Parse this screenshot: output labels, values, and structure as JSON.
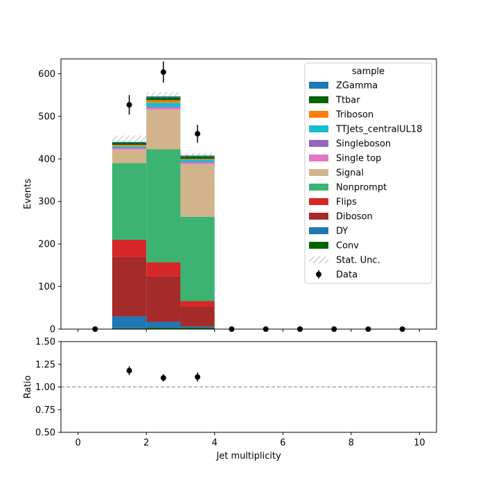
{
  "chart_data": [
    {
      "type": "bar",
      "stacked": true,
      "ylabel": "Events",
      "xlim": [
        -0.5,
        10.5
      ],
      "ylim": [
        0,
        635
      ],
      "yticks": [
        0,
        100,
        200,
        300,
        400,
        500,
        600
      ],
      "xticks": [
        0,
        2,
        4,
        6,
        8,
        10
      ],
      "grid": false,
      "legend_title": "sample",
      "legend_placement": "top-right",
      "bins": [
        [
          1,
          2
        ],
        [
          2,
          3
        ],
        [
          3,
          4
        ]
      ],
      "series": [
        {
          "name": "Conv",
          "color": "#006400",
          "values": [
            2,
            3,
            3
          ]
        },
        {
          "name": "DY",
          "color": "#1f77b4",
          "values": [
            28,
            14,
            3
          ]
        },
        {
          "name": "Diboson",
          "color": "#a52a2a",
          "values": [
            140,
            107,
            47
          ]
        },
        {
          "name": "Flips",
          "color": "#d62728",
          "values": [
            40,
            33,
            13
          ]
        },
        {
          "name": "Nonprompt",
          "color": "#3cb371",
          "values": [
            180,
            266,
            198
          ]
        },
        {
          "name": "Signal",
          "color": "#d2b48c",
          "values": [
            32,
            93,
            124
          ]
        },
        {
          "name": "Single top",
          "color": "#e377c2",
          "values": [
            3,
            4,
            3
          ]
        },
        {
          "name": "Singleboson",
          "color": "#9467bd",
          "values": [
            2,
            2,
            2
          ]
        },
        {
          "name": "TTJets_centralUL18",
          "color": "#17becf",
          "values": [
            3,
            10,
            5
          ]
        },
        {
          "name": "Triboson",
          "color": "#ff7f0e",
          "values": [
            3,
            6,
            2
          ]
        },
        {
          "name": "Ttbar",
          "color": "#006400",
          "values": [
            5,
            7,
            6
          ]
        },
        {
          "name": "ZGamma",
          "color": "#1f77b4",
          "values": [
            2,
            2,
            2
          ]
        }
      ],
      "stat_unc": [
        {
          "bin": [
            1,
            2
          ],
          "low": 437,
          "high": 455
        },
        {
          "bin": [
            2,
            3
          ],
          "low": 541,
          "high": 557
        },
        {
          "bin": [
            3,
            4
          ],
          "low": 403,
          "high": 414
        }
      ],
      "data_points": {
        "name": "Data",
        "x": [
          0.5,
          1.5,
          2.5,
          3.5,
          4.5,
          5.5,
          6.5,
          7.5,
          8.5,
          9.5
        ],
        "y": [
          0,
          527,
          604,
          459,
          0,
          0,
          0,
          0,
          0,
          0
        ],
        "err": [
          0,
          23,
          25,
          21,
          0,
          0,
          0,
          0,
          0,
          0
        ]
      },
      "legend_order": [
        "ZGamma",
        "Ttbar",
        "Triboson",
        "TTJets_centralUL18",
        "Singleboson",
        "Single top",
        "Signal",
        "Nonprompt",
        "Flips",
        "Diboson",
        "DY",
        "Conv",
        "Stat. Unc.",
        "Data"
      ]
    },
    {
      "type": "scatter",
      "ylabel": "Ratio",
      "xlabel": "Jet multiplicity",
      "xlim": [
        -0.5,
        10.5
      ],
      "ylim": [
        0.5,
        1.5
      ],
      "yticks": [
        "0.50",
        "0.75",
        "1.00",
        "1.25",
        "1.50"
      ],
      "xticks": [
        0,
        2,
        4,
        6,
        8,
        10
      ],
      "reference_line": 1.0,
      "points": {
        "x": [
          1.5,
          2.5,
          3.5
        ],
        "y": [
          1.18,
          1.1,
          1.11
        ],
        "err": [
          0.05,
          0.04,
          0.05
        ]
      }
    }
  ]
}
